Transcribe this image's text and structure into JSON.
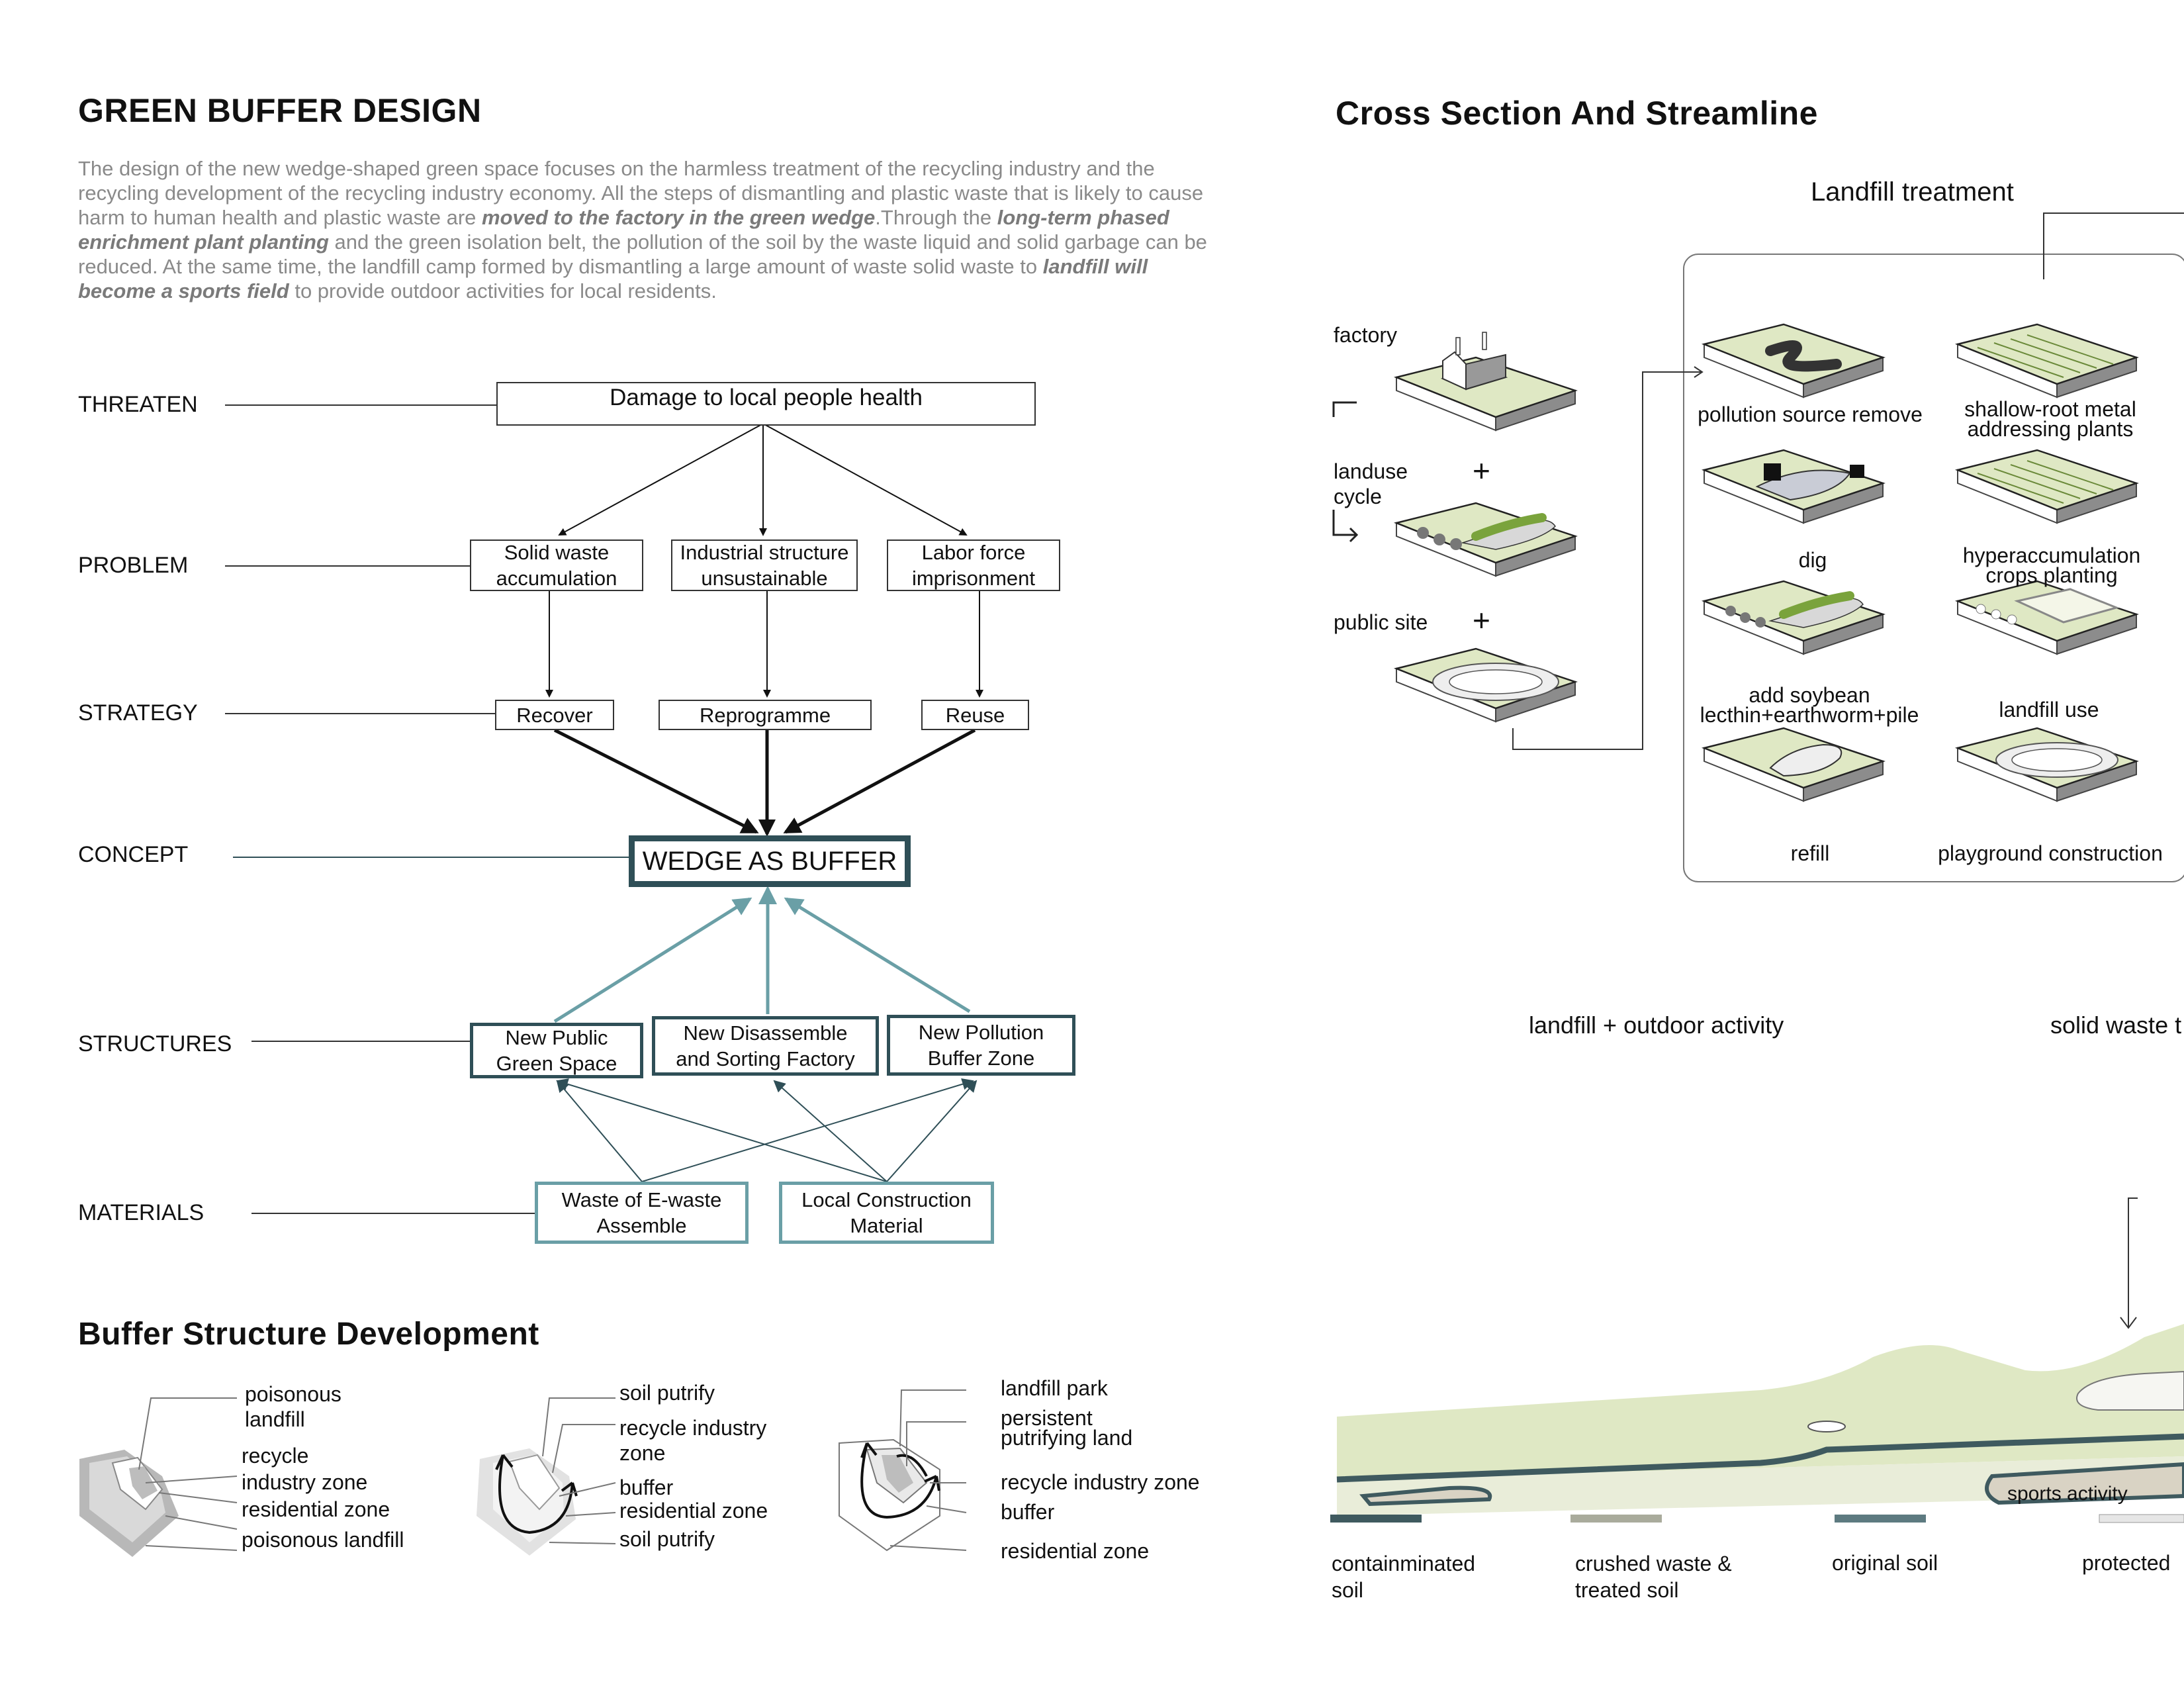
{
  "left": {
    "title": "GREEN BUFFER DESIGN",
    "intro": [
      {
        "t": "The design of the new wedge-shaped green space focuses on the harmless treatment of the recycling industry and the recycling development of the recycling industry economy. All the steps of dismantling and plastic waste that is likely to cause harm to human health and plastic waste are ",
        "b": false
      },
      {
        "t": "moved to the factory in the green wedge",
        "b": true
      },
      {
        "t": ".Through the ",
        "b": false
      },
      {
        "t": "long-term phased enrichment plant planting",
        "b": true
      },
      {
        "t": " and the green isolation belt, the pollution of the soil by the waste liquid and solid garbage can be reduced. At the same time, the landfill camp formed by dismantling a large amount of waste solid waste to ",
        "b": false
      },
      {
        "t": "landfill will become a sports field",
        "b": true
      },
      {
        "t": " to provide outdoor activities for local residents.",
        "b": false
      }
    ]
  },
  "flow": {
    "levels": [
      "THREATEN",
      "PROBLEM",
      "STRATEGY",
      "CONCEPT",
      "STRUCTURES",
      "MATERIALS"
    ],
    "threat": "Damage to local people health",
    "problems": [
      "Solid waste\naccumulation",
      "Industrial structure\nunsustainable",
      "Labor force\nimprisonment"
    ],
    "strategies": [
      "Recover",
      "Reprogramme",
      "Reuse"
    ],
    "concept": "WEDGE AS BUFFER",
    "structures": [
      "New Public\nGreen Space",
      "New Disassemble\nand Sorting Factory",
      "New Pollution\nBuffer Zone"
    ],
    "materials": [
      "Waste of E-waste\nAssemble",
      "Local Construction\nMaterial"
    ]
  },
  "buffer": {
    "title": "Buffer Structure Development",
    "d1": [
      "poisonous\nlandfill",
      "recycle",
      "industry zone",
      "residential zone",
      "poisonous landfill"
    ],
    "d2": [
      "soil putrify",
      "recycle industry\nzone",
      "buffer",
      "residential zone",
      "soil putrify"
    ],
    "d3": [
      "landfill park",
      "persistent\nputrifying land",
      "recycle industry zone",
      "buffer",
      "residential zone"
    ]
  },
  "right": {
    "title": "Cross Section And Streamline",
    "landfill_title": "Landfill treatment",
    "side_labels": [
      "factory",
      "landuse\ncycle",
      "public site"
    ],
    "plus": "+",
    "tiles": [
      "pollution source remove",
      "shallow-root metal\naddressing plants",
      "dig",
      "hyperaccumulation\ncrops planting",
      "add soybean\nlecthin+earthworm+pile",
      "landfill use",
      "refill",
      "playground construction"
    ],
    "section_labels": [
      "landfill + outdoor activity",
      "solid waste t",
      "sports activity"
    ],
    "legend": [
      {
        "label": "containminated\nsoil",
        "color": "#3f5a5f"
      },
      {
        "label": "crushed waste &\ntreated soil",
        "color": "#a9ab9c"
      },
      {
        "label": "original  soil",
        "color": "#5d7a80"
      },
      {
        "label": "protected",
        "color": "#e6e6e6"
      }
    ]
  }
}
